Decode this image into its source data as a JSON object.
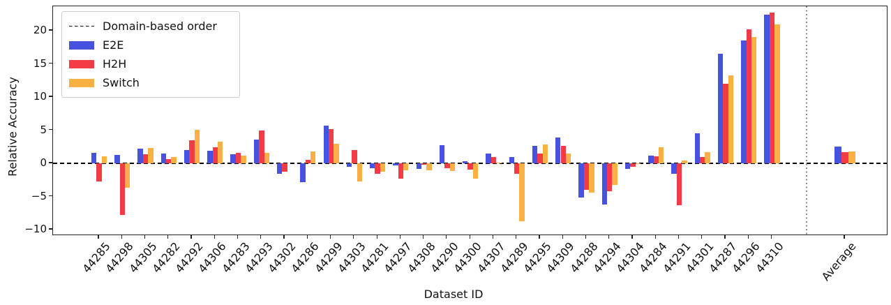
{
  "chart_data": {
    "type": "bar",
    "title": "",
    "xlabel": "Dataset ID",
    "ylabel": "Relative Accuracy",
    "ylim": [
      -10.8,
      23.7
    ],
    "grid": false,
    "yticks": [
      20,
      15,
      10,
      5,
      0,
      -5,
      -10
    ],
    "ytick_labels": [
      "20",
      "15",
      "10",
      "5",
      "0",
      "−5",
      "−10"
    ],
    "categories": [
      "44285",
      "44298",
      "44305",
      "44282",
      "44292",
      "44306",
      "44283",
      "44293",
      "44302",
      "44286",
      "44299",
      "44303",
      "44281",
      "44297",
      "44308",
      "44290",
      "44300",
      "44307",
      "44289",
      "44295",
      "44309",
      "44288",
      "44294",
      "44304",
      "44284",
      "44291",
      "44301",
      "44287",
      "44296",
      "44310",
      "Average"
    ],
    "series": [
      {
        "name": "E2E",
        "color": "#4852E0",
        "values": [
          1.6,
          1.3,
          2.2,
          1.5,
          2.0,
          1.9,
          1.4,
          3.6,
          -1.6,
          -2.8,
          5.7,
          -0.5,
          -0.7,
          -0.3,
          -0.8,
          2.7,
          0.3,
          1.5,
          1.0,
          2.6,
          3.9,
          -5.2,
          -6.2,
          -0.8,
          1.2,
          -1.6,
          4.5,
          16.5,
          18.5,
          22.4,
          2.5
        ]
      },
      {
        "name": "H2H",
        "color": "#F33B46",
        "values": [
          -2.7,
          -7.8,
          1.4,
          0.6,
          3.5,
          2.4,
          1.6,
          5.0,
          -1.3,
          0.5,
          5.2,
          2.0,
          -1.6,
          -2.3,
          -0.2,
          -0.7,
          -0.9,
          0.9,
          -1.6,
          1.5,
          2.6,
          -4.0,
          -4.2,
          -0.5,
          1.1,
          -6.3,
          1.0,
          12.0,
          20.2,
          22.7,
          1.7
        ]
      },
      {
        "name": "Switch",
        "color": "#FAB141",
        "values": [
          1.1,
          -3.7,
          2.3,
          1.0,
          5.1,
          3.3,
          1.2,
          1.6,
          0.0,
          1.8,
          2.9,
          -2.7,
          -1.3,
          -1.1,
          -1.0,
          -1.2,
          -2.3,
          0.1,
          -8.7,
          2.8,
          1.5,
          -4.4,
          -3.3,
          -0.1,
          2.4,
          0.4,
          1.7,
          13.3,
          19.1,
          21.0,
          1.8
        ]
      }
    ],
    "legend": {
      "position": "upper left",
      "line_entry_label": "Domain-based order"
    },
    "zero_line": {
      "style": "dashed",
      "color": "#000000",
      "y": 0
    },
    "separator": {
      "style": "dotted",
      "color": "#999999",
      "before_category": "Average"
    },
    "average_bars_hatch": "/"
  }
}
